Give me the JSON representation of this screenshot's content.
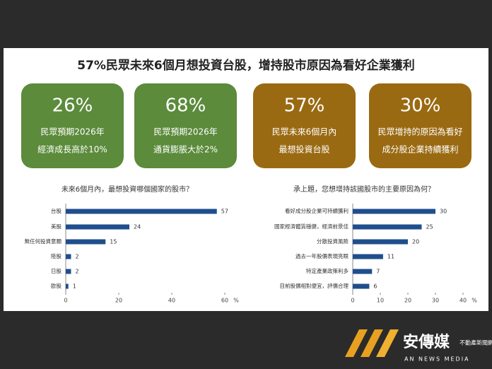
{
  "title": "57%民眾未來6個月想投資台股，增持股市原因為看好企業獲利",
  "cards": [
    {
      "value": "26%",
      "lines": [
        "民眾預期2026年",
        "經濟成長高於10%"
      ],
      "color": "#5b8b3b"
    },
    {
      "value": "68%",
      "lines": [
        "民眾預期2026年",
        "通貨膨脹大於2%"
      ],
      "color": "#5b8b3b"
    },
    {
      "value": "57%",
      "lines": [
        "民眾未來6個月內",
        "最想投資台股"
      ],
      "color": "#9a6a12"
    },
    {
      "value": "30%",
      "lines": [
        "民眾增持的原因為看好",
        "成分股企業持續獲利"
      ],
      "color": "#9a6a12"
    }
  ],
  "logo": {
    "name": "安傳媒",
    "sub": "不動產新聞網",
    "english": "AN NEWS MEDIA"
  },
  "chart_data": [
    {
      "type": "bar",
      "orientation": "horizontal",
      "title": "未來6個月內，最想投資哪個國家的股市？",
      "categories": [
        "台股",
        "美股",
        "無任何投資意願",
        "陸股",
        "日股",
        "歐股"
      ],
      "values": [
        57,
        24,
        15,
        2,
        2,
        1
      ],
      "color": "#1f4e8c",
      "xlim": [
        0,
        60
      ],
      "xticks": [
        0,
        20,
        40,
        60
      ],
      "x_label": "%"
    },
    {
      "type": "bar",
      "orientation": "horizontal",
      "title": "承上題，您想增持該國股市的主要原因為何？",
      "categories": [
        "看好成分股企業可持續獲利",
        "國家經濟體質穩健，經濟前景佳",
        "分散投資風險",
        "過去一年股價表現亮眼",
        "特定產業政策利多",
        "目前股價相對便宜，評價合理"
      ],
      "values": [
        30,
        25,
        20,
        11,
        7,
        6
      ],
      "color": "#1f4e8c",
      "xlim": [
        0,
        40
      ],
      "xticks": [
        0,
        10,
        20,
        30,
        40
      ],
      "x_label": "%"
    }
  ]
}
